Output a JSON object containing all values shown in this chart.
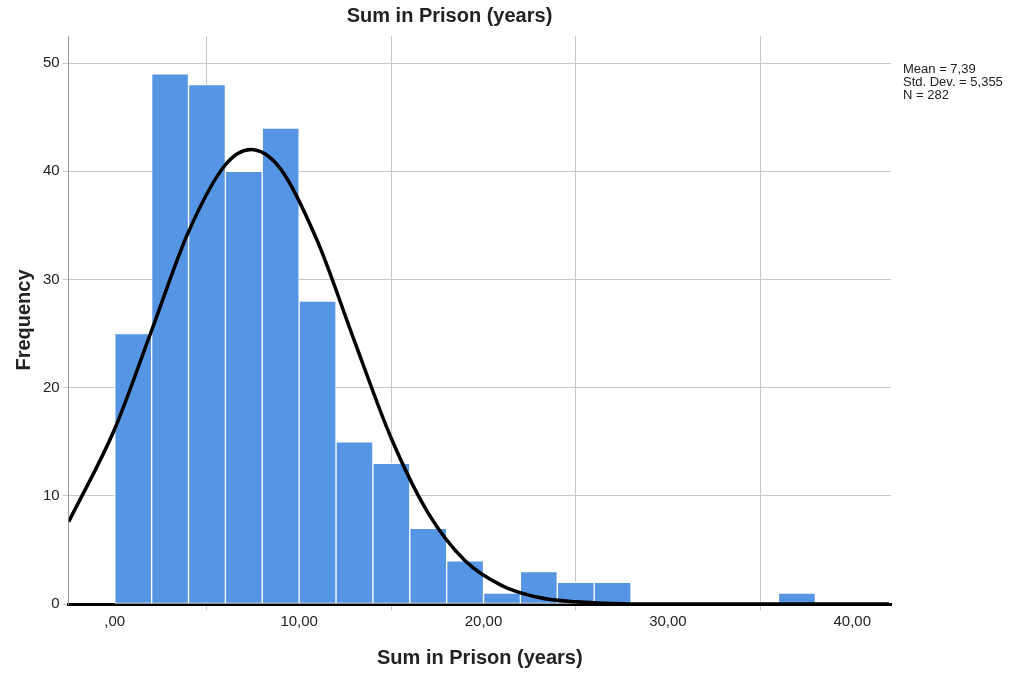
{
  "chart_data": {
    "type": "histogram",
    "title": "Sum in Prison (years)",
    "xlabel": "Sum in Prison (years)",
    "ylabel": "Frequency",
    "bins": [
      0,
      2,
      4,
      6,
      8,
      10,
      12,
      14,
      16,
      18,
      20,
      22,
      24,
      26,
      28,
      30,
      32,
      34,
      36,
      38
    ],
    "values": [
      25,
      49,
      48,
      40,
      44,
      28,
      15,
      13,
      7,
      4,
      1,
      3,
      2,
      2,
      0,
      0,
      0,
      0,
      1
    ],
    "color": "#5595e4",
    "series": [
      {
        "type": "line",
        "color": "#000000",
        "x": [
          -2.5,
          0,
          2,
          4,
          6,
          7.39,
          9,
          11,
          13,
          15,
          17,
          19,
          21,
          23,
          25,
          28,
          32,
          36,
          42
        ],
        "values": [
          7.6,
          16.2,
          25.3,
          34.4,
          40.6,
          42,
          40.2,
          33.5,
          24.3,
          15.3,
          8.4,
          4,
          1.7,
          0.6,
          0.2,
          0,
          0,
          0,
          0
        ]
      }
    ],
    "marker": "none",
    "xlim": [
      -2.5,
      42.1
    ],
    "ylim": [
      0,
      52.5
    ],
    "xticks": [
      {
        "value": 0,
        "label": ",00"
      },
      {
        "value": 10,
        "label": "10,00"
      },
      {
        "value": 20,
        "label": "20,00"
      },
      {
        "value": 30,
        "label": "30,00"
      },
      {
        "value": 40,
        "label": "40,00"
      }
    ],
    "yticks": [
      0,
      10,
      20,
      30,
      40,
      50
    ],
    "grid": true,
    "annotations": [
      "Mean = 7,39",
      "Std. Dev. = 5,355",
      "N = 282"
    ]
  }
}
